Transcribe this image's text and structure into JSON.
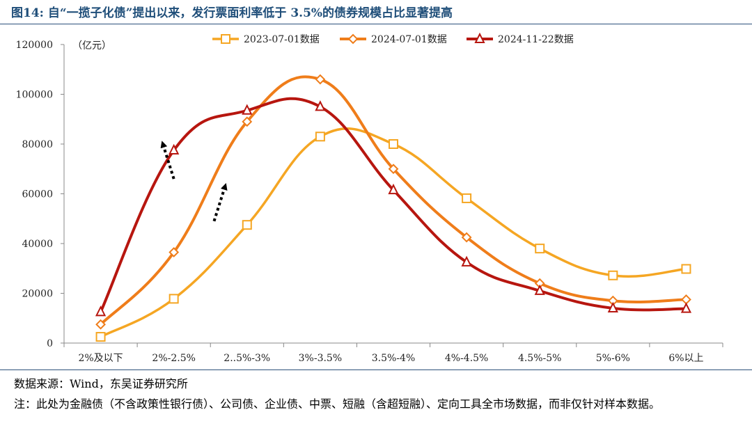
{
  "header": {
    "title": "图14:  自“一揽子化债”提出以来，发行票面利率低于 3.5%的债券规模占比显著提高"
  },
  "footer": {
    "source": "数据来源：Wind，东吴证券研究所",
    "note": "注：此处为金融债（不含政策性银行债）、公司债、企业债、中票、短融（含超短融）、定向工具全市场数据，而非仅针对样本数据。"
  },
  "chart_data": {
    "type": "line",
    "title": "",
    "xlabel": "",
    "ylabel": "（亿元）",
    "ylim": [
      0,
      120000
    ],
    "yticks": [
      0,
      20000,
      40000,
      60000,
      80000,
      100000,
      120000
    ],
    "categories": [
      "2%及以下",
      "2%-2.5%",
      "2..5%-3%",
      "3%-3.5%",
      "3.5%-4%",
      "4%-4.5%",
      "4.5%-5%",
      "5%-6%",
      "6%以上"
    ],
    "legend_position": "top",
    "series": [
      {
        "name": "2023-07-01数据",
        "color": "#f5a623",
        "marker": "square",
        "values": [
          2500,
          17800,
          47500,
          83000,
          80000,
          58200,
          38000,
          27200,
          29800
        ]
      },
      {
        "name": "2024-07-01数据",
        "color": "#ef7d1a",
        "marker": "diamond",
        "values": [
          7500,
          36500,
          89000,
          106000,
          70000,
          42500,
          24000,
          17000,
          17500
        ]
      },
      {
        "name": "2024-11-22数据",
        "color": "#b7160f",
        "marker": "triangle",
        "values": [
          12500,
          77500,
          93500,
          95000,
          61500,
          32500,
          21000,
          14000,
          13800
        ]
      }
    ],
    "annotations": [
      {
        "type": "arrow",
        "style": "dotted",
        "direction": "up-left",
        "from": [
          "2..5%-3%",
          49000
        ],
        "to": [
          "2%-2.5%",
          63000
        ]
      },
      {
        "type": "arrow",
        "style": "dotted",
        "direction": "up-left",
        "from": [
          "2%-2.5%",
          66000
        ],
        "to": [
          "2%-2.5%",
          80000
        ]
      }
    ]
  }
}
